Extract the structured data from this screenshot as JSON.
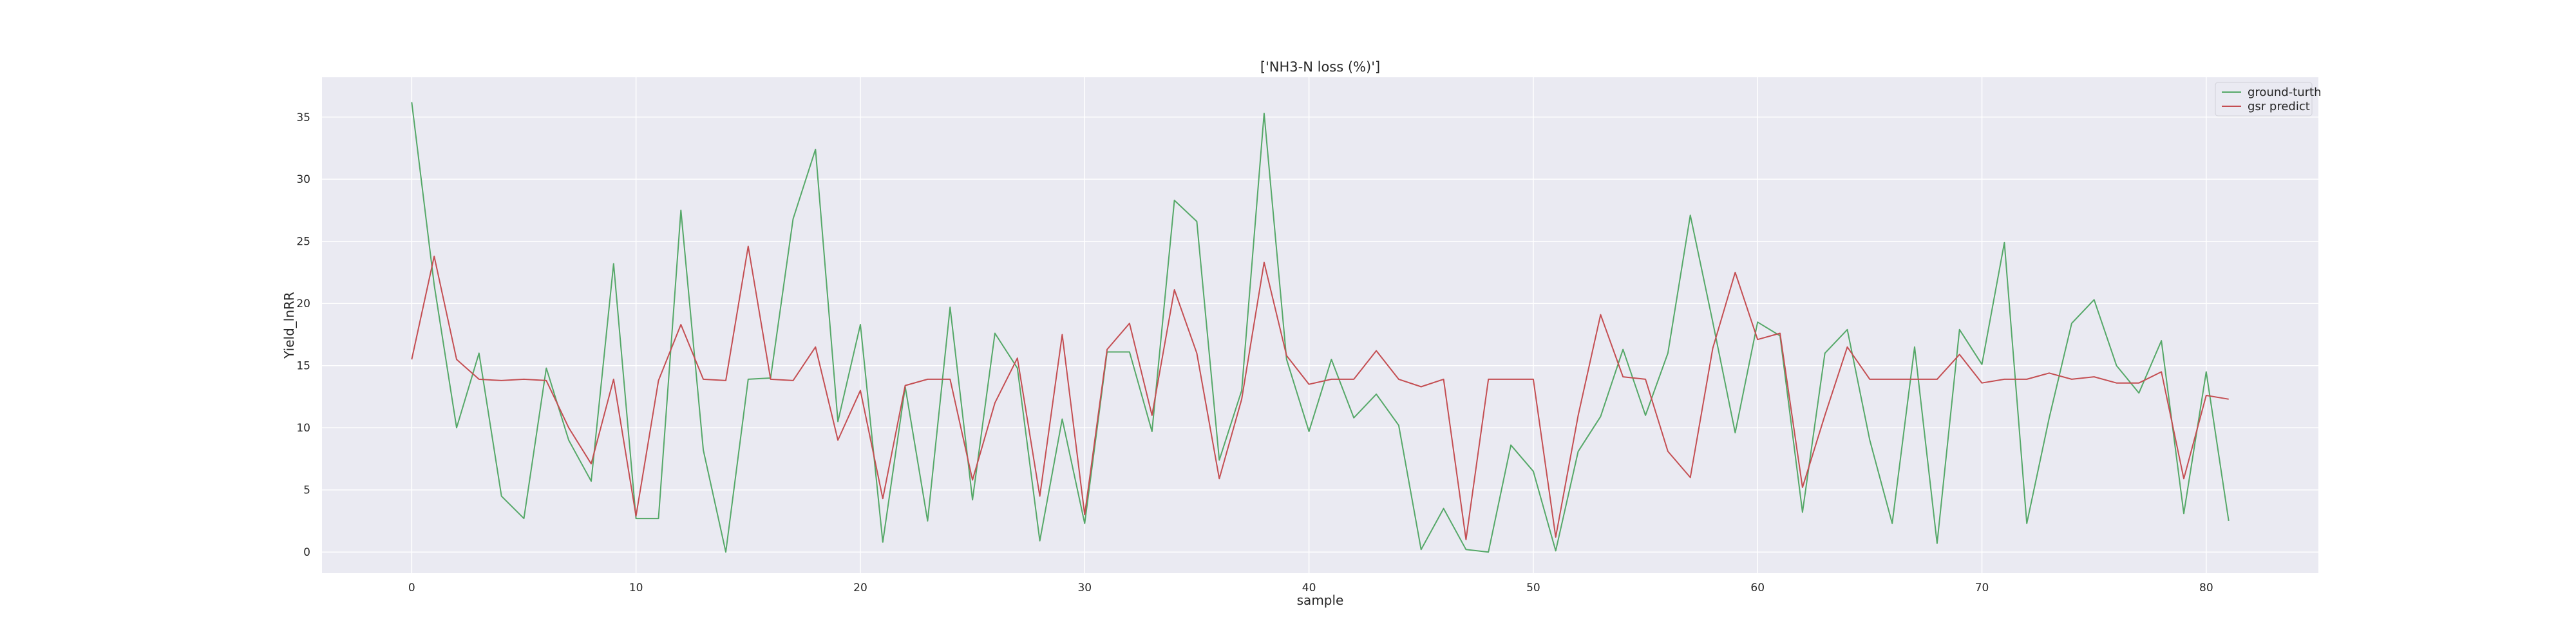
{
  "chart_data": {
    "type": "line",
    "title": "['NH3-N loss (%)']",
    "xlabel": "sample",
    "ylabel": "Yield_lnRR",
    "xlim": [
      -4,
      85
    ],
    "ylim": [
      -1.7,
      38.2
    ],
    "xticks": [
      0,
      10,
      20,
      30,
      40,
      50,
      60,
      70,
      80
    ],
    "yticks": [
      0,
      5,
      10,
      15,
      20,
      25,
      30,
      35
    ],
    "grid": true,
    "legend_position": "top-right",
    "background_color": "#eaeaf2",
    "series": [
      {
        "name": "ground-turth",
        "color": "#55a868",
        "values": [
          36.2,
          21.5,
          10.0,
          16.0,
          4.5,
          2.7,
          14.8,
          9.0,
          5.7,
          23.2,
          2.7,
          2.7,
          27.5,
          8.2,
          0.0,
          13.9,
          14.0,
          26.8,
          32.4,
          10.5,
          18.3,
          0.8,
          13.3,
          2.5,
          19.7,
          4.2,
          17.6,
          14.8,
          0.9,
          10.7,
          2.3,
          16.1,
          16.1,
          9.7,
          28.3,
          26.6,
          7.4,
          13.0,
          35.3,
          15.5,
          9.7,
          15.5,
          10.8,
          12.7,
          10.2,
          0.2,
          3.5,
          0.2,
          0.0,
          8.6,
          6.5,
          0.1,
          8.1,
          10.9,
          16.3,
          11.0,
          16.0,
          27.1,
          18.5,
          9.6,
          18.5,
          17.4,
          3.2,
          16.0,
          17.9,
          9.0,
          2.3,
          16.5,
          0.7,
          17.9,
          15.1,
          24.9,
          2.3,
          10.8,
          18.4,
          20.3,
          15.0,
          12.8,
          17.0,
          3.1,
          14.5,
          2.5
        ]
      },
      {
        "name": "gsr predict",
        "color": "#c44e52",
        "values": [
          15.5,
          23.8,
          15.5,
          13.9,
          13.8,
          13.9,
          13.8,
          10.0,
          7.1,
          13.9,
          2.9,
          13.8,
          18.3,
          13.9,
          13.8,
          24.6,
          13.9,
          13.8,
          16.5,
          9.0,
          13.0,
          4.3,
          13.4,
          13.9,
          13.9,
          5.8,
          12.0,
          15.6,
          4.5,
          17.5,
          3.0,
          16.3,
          18.4,
          11.0,
          21.1,
          16.0,
          5.9,
          12.3,
          23.3,
          15.8,
          13.5,
          13.9,
          13.9,
          16.2,
          13.9,
          13.3,
          13.9,
          1.0,
          13.9,
          13.9,
          13.9,
          1.2,
          11.0,
          19.1,
          14.1,
          13.9,
          8.1,
          6.0,
          16.4,
          22.5,
          17.1,
          17.6,
          5.2,
          11.0,
          16.5,
          13.9,
          13.9,
          13.9,
          13.9,
          15.9,
          13.6,
          13.9,
          13.9,
          14.4,
          13.9,
          14.1,
          13.6,
          13.6,
          14.5,
          5.9,
          12.6,
          12.3
        ]
      }
    ]
  }
}
